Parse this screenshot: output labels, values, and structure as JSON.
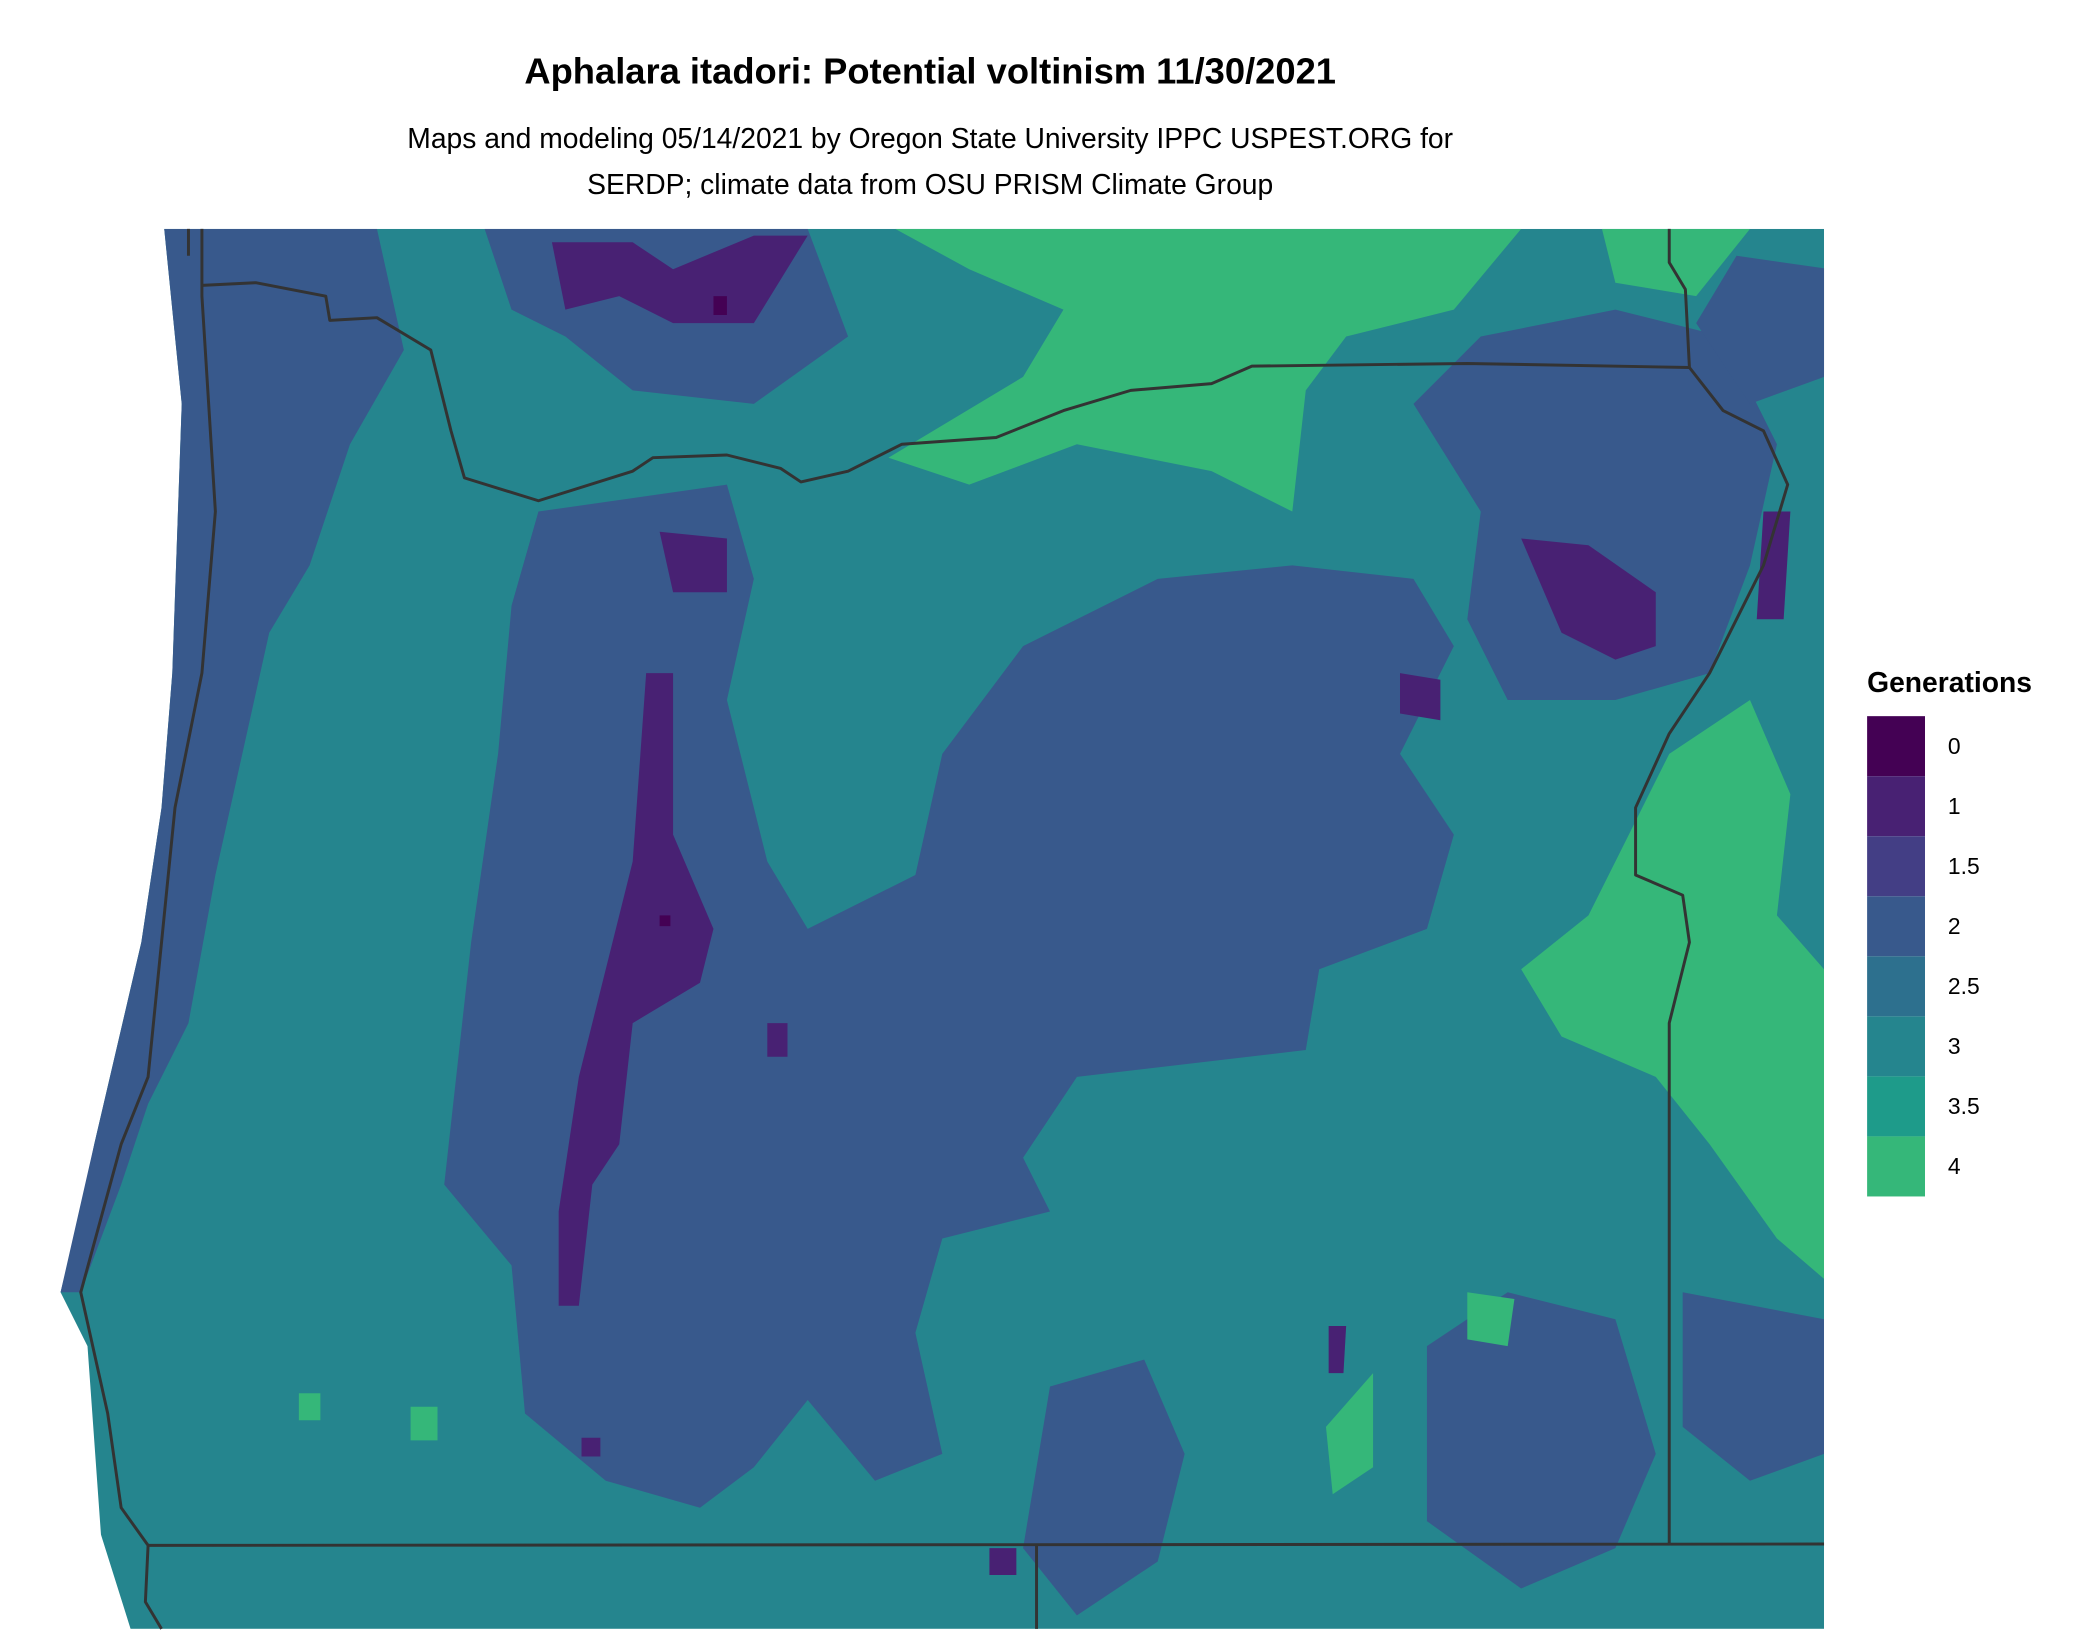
{
  "title": "Aphalara itadori: Potential voltinism 11/30/2021",
  "subtitle_line1": "Maps and modeling 05/14/2021 by Oregon State University IPPC USPEST.ORG for",
  "subtitle_line2": "SERDP; climate data from OSU PRISM Climate Group",
  "chart_data": {
    "type": "heatmap",
    "title": "Aphalara itadori: Potential voltinism 11/30/2021",
    "legend": {
      "title": "Generations",
      "placement": "right",
      "items": [
        {
          "label": "0",
          "color": "#440154"
        },
        {
          "label": "1",
          "color": "#482173"
        },
        {
          "label": "1.5",
          "color": "#433e85"
        },
        {
          "label": "2",
          "color": "#38598c"
        },
        {
          "label": "2.5",
          "color": "#2d708e"
        },
        {
          "label": "3",
          "color": "#25858e"
        },
        {
          "label": "3.5",
          "color": "#1e9b8a"
        },
        {
          "label": "4",
          "color": "#35b779"
        }
      ]
    },
    "border_color": "#333333"
  }
}
